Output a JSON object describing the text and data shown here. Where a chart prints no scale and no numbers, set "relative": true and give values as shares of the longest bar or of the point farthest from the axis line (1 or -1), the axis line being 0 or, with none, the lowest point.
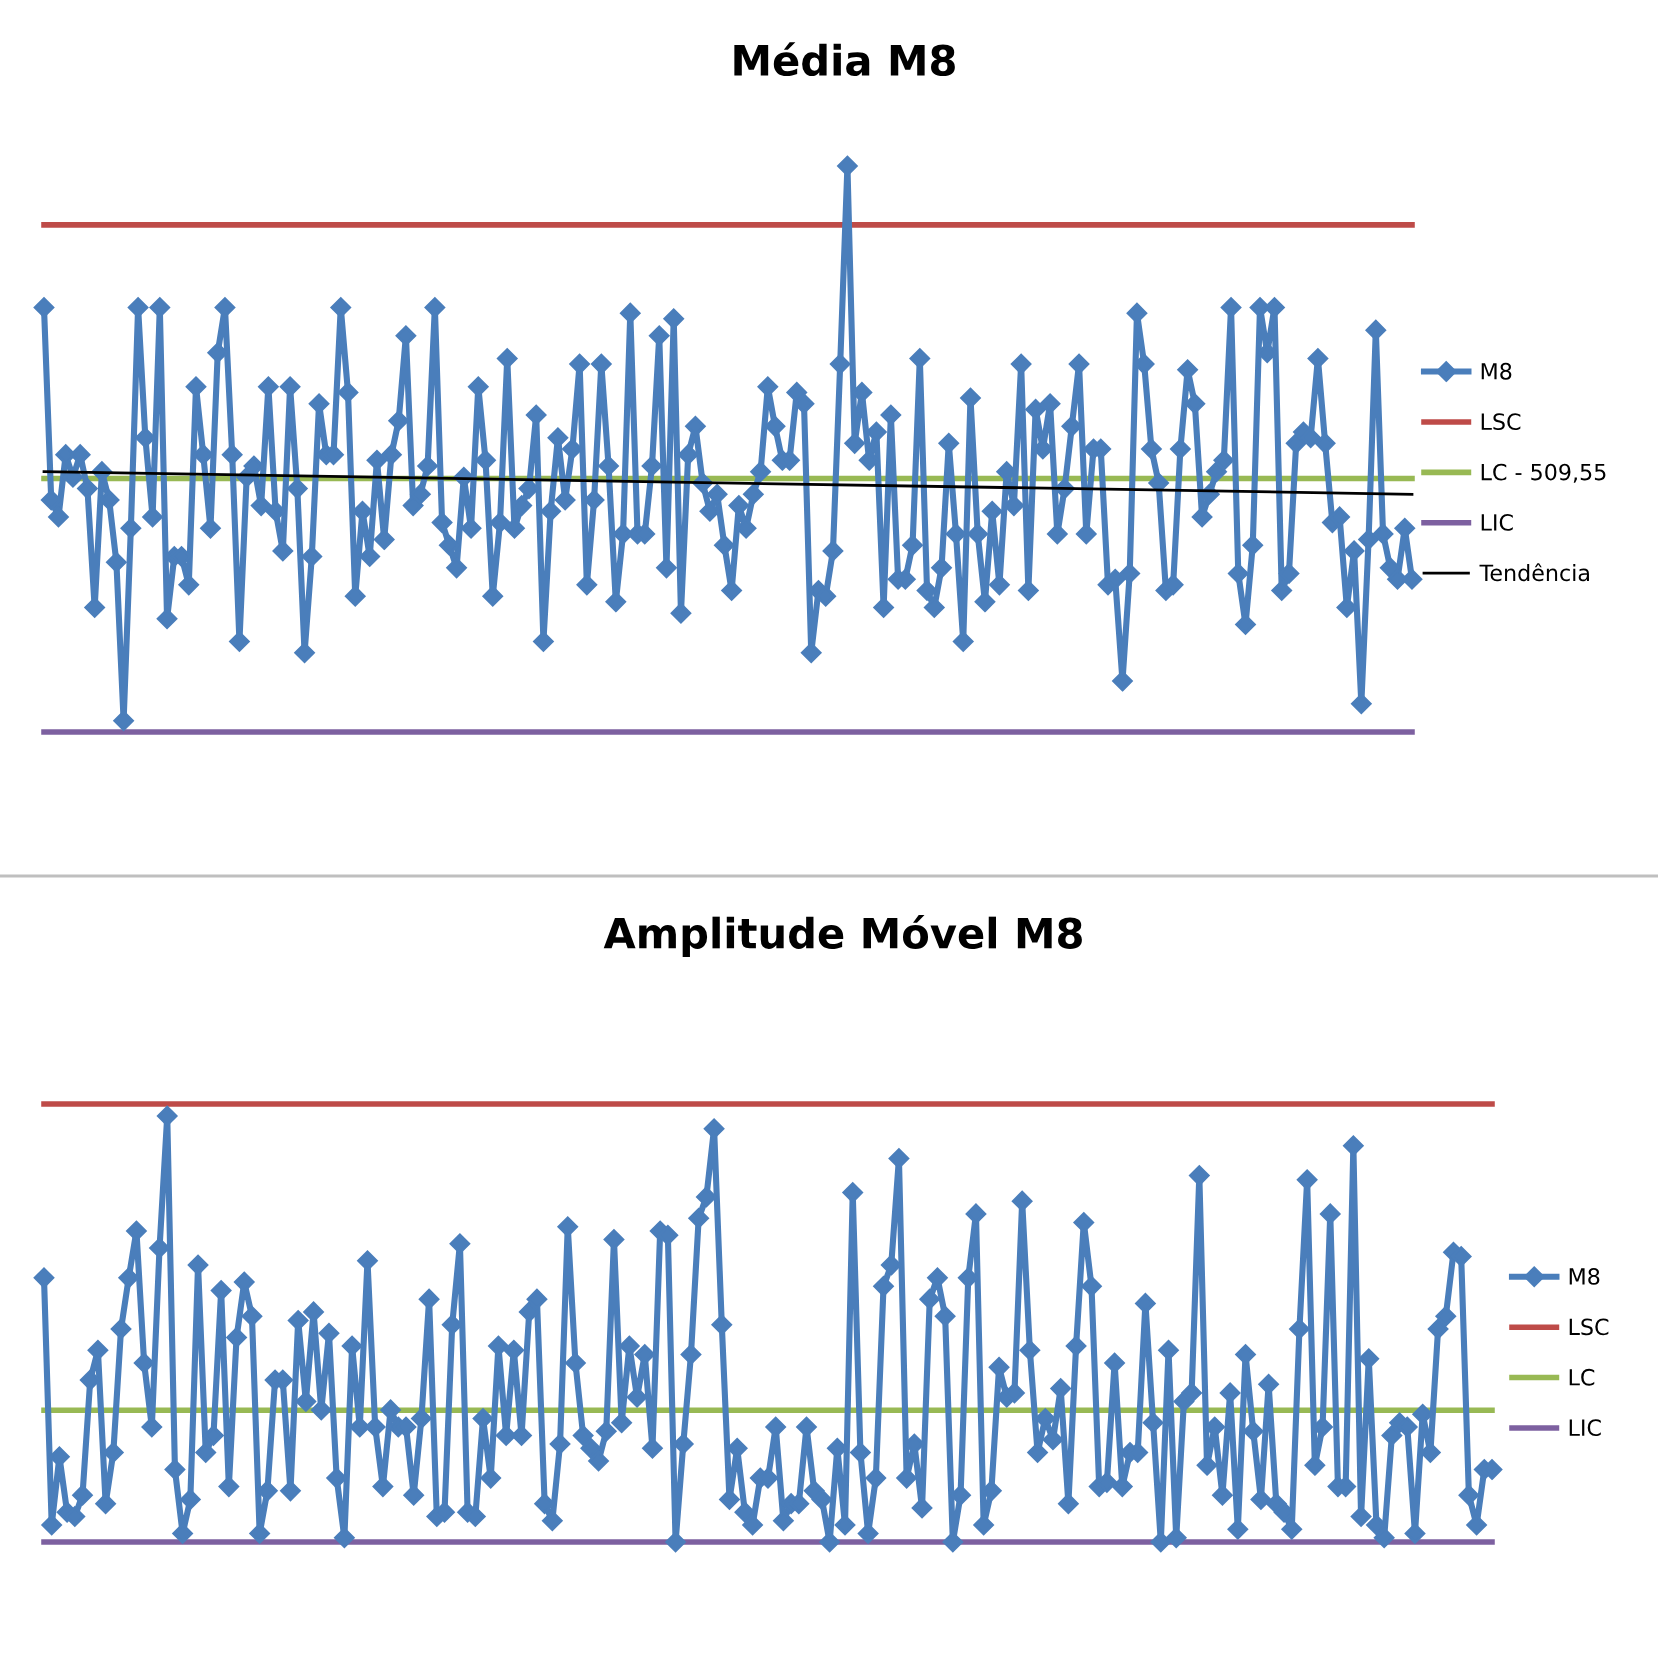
{
  "chart_data": [
    {
      "type": "line",
      "title": "Média M8",
      "relative": true,
      "legend": "right",
      "tick_labels": false,
      "categories": [
        null,
        null,
        null,
        null,
        null,
        null,
        null,
        null,
        null,
        null,
        null,
        null,
        null,
        null,
        null,
        null,
        null,
        null,
        null,
        null,
        null,
        null,
        null,
        null,
        null,
        null,
        null,
        null,
        null,
        null,
        null,
        null,
        null,
        null,
        null,
        null,
        null,
        null,
        null,
        null,
        null,
        null,
        null,
        null,
        null,
        null,
        null,
        null,
        null,
        null,
        null,
        null,
        null,
        null,
        null,
        null,
        null,
        null,
        null,
        null,
        null,
        null,
        null,
        null,
        null,
        null,
        null,
        null,
        null,
        null,
        null,
        null,
        null,
        null,
        null,
        null,
        null,
        null,
        null,
        null,
        null,
        null,
        null,
        null,
        null,
        null,
        null,
        null,
        null,
        null,
        null,
        null,
        null,
        null,
        null,
        null,
        null,
        null,
        null,
        null,
        null,
        null,
        null,
        null,
        null,
        null,
        null,
        null,
        null,
        null,
        null,
        null,
        null,
        null,
        null,
        null,
        null,
        null,
        null,
        null,
        null,
        null,
        null,
        null,
        null,
        null,
        null,
        null,
        null,
        null,
        null,
        null,
        null,
        null,
        null,
        null,
        null,
        null,
        null,
        null,
        null,
        null,
        null,
        null,
        null,
        null,
        null,
        null,
        null,
        null,
        null,
        null,
        null,
        null,
        null,
        null,
        null,
        null,
        null,
        null,
        null,
        null,
        null,
        null,
        null,
        null,
        null,
        null,
        null,
        null,
        null,
        null,
        null,
        null,
        null,
        null,
        null,
        null,
        null,
        null,
        null,
        null,
        null,
        null,
        null,
        null,
        null,
        null,
        null,
        null
      ],
      "series": [
        {
          "name": "M8",
          "color": "#4a7ebb",
          "marker": "diamond",
          "values": [
            0.75,
            0.41,
            0.38,
            0.49,
            0.45,
            0.49,
            0.43,
            0.22,
            0.46,
            0.41,
            0.3,
            0.02,
            0.36,
            0.75,
            0.52,
            0.38,
            0.75,
            0.2,
            0.31,
            0.31,
            0.26,
            0.61,
            0.49,
            0.36,
            0.67,
            0.75,
            0.49,
            0.16,
            0.45,
            0.47,
            0.4,
            0.61,
            0.39,
            0.32,
            0.61,
            0.43,
            0.14,
            0.31,
            0.58,
            0.49,
            0.49,
            0.75,
            0.6,
            0.24,
            0.39,
            0.31,
            0.48,
            0.34,
            0.49,
            0.55,
            0.7,
            0.4,
            0.42,
            0.47,
            0.75,
            0.37,
            0.33,
            0.29,
            0.45,
            0.36,
            0.61,
            0.48,
            0.24,
            0.37,
            0.66,
            0.36,
            0.4,
            0.43,
            0.56,
            0.16,
            0.39,
            0.52,
            0.41,
            0.5,
            0.65,
            0.26,
            0.41,
            0.65,
            0.47,
            0.23,
            0.35,
            0.74,
            0.35,
            0.35,
            0.47,
            0.7,
            0.29,
            0.73,
            0.21,
            0.49,
            0.54,
            0.44,
            0.39,
            0.42,
            0.33,
            0.25,
            0.4,
            0.36,
            0.42,
            0.46,
            0.61,
            0.54,
            0.48,
            0.48,
            0.6,
            0.58,
            0.14,
            0.25,
            0.24,
            0.32,
            0.65,
            1.0,
            0.51,
            0.6,
            0.48,
            0.53,
            0.22,
            0.56,
            0.27,
            0.27,
            0.33,
            0.66,
            0.25,
            0.22,
            0.29,
            0.51,
            0.35,
            0.16,
            0.59,
            0.35,
            0.23,
            0.39,
            0.26,
            0.46,
            0.4,
            0.65,
            0.25,
            0.57,
            0.5,
            0.58,
            0.35,
            0.43,
            0.54,
            0.65,
            0.35,
            0.5,
            0.5,
            0.26,
            0.27,
            0.09,
            0.28,
            0.74,
            0.65,
            0.5,
            0.44,
            0.25,
            0.26,
            0.5,
            0.64,
            0.58,
            0.38,
            0.42,
            0.46,
            0.48,
            0.75,
            0.28,
            0.19,
            0.33,
            0.75,
            0.67,
            0.75,
            0.25,
            0.28,
            0.51,
            0.53,
            0.52,
            0.66,
            0.51,
            0.37,
            0.38,
            0.22,
            0.32,
            0.05,
            0.34,
            0.71,
            0.35,
            0.29,
            0.27,
            0.36,
            0.27
          ]
        },
        {
          "name": "Tendência",
          "color": "#000000",
          "marker": "none",
          "type": "line",
          "values": [
            0.46,
            null,
            null,
            null,
            null,
            null,
            null,
            null,
            null,
            null,
            null,
            null,
            null,
            null,
            null,
            null,
            null,
            null,
            null,
            null,
            null,
            null,
            null,
            null,
            null,
            null,
            null,
            null,
            null,
            null,
            null,
            null,
            null,
            null,
            null,
            null,
            null,
            null,
            null,
            null,
            null,
            null,
            null,
            null,
            null,
            null,
            null,
            null,
            null,
            null,
            null,
            null,
            null,
            null,
            null,
            null,
            null,
            null,
            null,
            null,
            null,
            null,
            null,
            null,
            null,
            null,
            null,
            null,
            null,
            null,
            null,
            null,
            null,
            null,
            null,
            null,
            null,
            null,
            null,
            null,
            null,
            null,
            null,
            null,
            null,
            null,
            null,
            null,
            null,
            null,
            null,
            null,
            null,
            null,
            null,
            null,
            null,
            null,
            null,
            null,
            null,
            null,
            null,
            null,
            null,
            null,
            null,
            null,
            null,
            null,
            null,
            null,
            null,
            null,
            null,
            null,
            null,
            null,
            null,
            null,
            null,
            null,
            null,
            null,
            null,
            null,
            null,
            null,
            null,
            null,
            null,
            null,
            null,
            null,
            null,
            null,
            null,
            null,
            null,
            null,
            null,
            null,
            null,
            null,
            null,
            null,
            null,
            null,
            null,
            null,
            null,
            null,
            null,
            null,
            null,
            null,
            null,
            null,
            null,
            null,
            null,
            null,
            null,
            null,
            null,
            null,
            null,
            null,
            null,
            null,
            null,
            null,
            null,
            null,
            null,
            null,
            null,
            null,
            null,
            null,
            null,
            null,
            null,
            null,
            null,
            null,
            null,
            null,
            null,
            0.42
          ]
        }
      ],
      "ref_lines": [
        {
          "axis": "y",
          "value": 0.896,
          "label": "LSC",
          "color": "#be4b48"
        },
        {
          "axis": "y",
          "value": 0.448,
          "label": "LC - 509,55",
          "color": "#98b954"
        },
        {
          "axis": "y",
          "value": 0,
          "label": "LIC",
          "color": "#7d60a0"
        }
      ]
    },
    {
      "type": "line",
      "title": "Amplitude Móvel M8",
      "relative": true,
      "legend": "right",
      "tick_labels": false,
      "categories": [
        null,
        null,
        null,
        null,
        null,
        null,
        null,
        null,
        null,
        null,
        null,
        null,
        null,
        null,
        null,
        null,
        null,
        null,
        null,
        null,
        null,
        null,
        null,
        null,
        null,
        null,
        null,
        null,
        null,
        null,
        null,
        null,
        null,
        null,
        null,
        null,
        null,
        null,
        null,
        null,
        null,
        null,
        null,
        null,
        null,
        null,
        null,
        null,
        null,
        null,
        null,
        null,
        null,
        null,
        null,
        null,
        null,
        null,
        null,
        null,
        null,
        null,
        null,
        null,
        null,
        null,
        null,
        null,
        null,
        null,
        null,
        null,
        null,
        null,
        null,
        null,
        null,
        null,
        null,
        null,
        null,
        null,
        null,
        null,
        null,
        null,
        null,
        null,
        null,
        null,
        null,
        null,
        null,
        null,
        null,
        null,
        null,
        null,
        null,
        null,
        null,
        null,
        null,
        null,
        null,
        null,
        null,
        null,
        null,
        null,
        null,
        null,
        null,
        null,
        null,
        null,
        null,
        null,
        null,
        null,
        null,
        null,
        null,
        null,
        null,
        null,
        null,
        null,
        null,
        null,
        null,
        null,
        null,
        null,
        null,
        null,
        null,
        null,
        null,
        null,
        null,
        null,
        null,
        null,
        null,
        null,
        null,
        null,
        null,
        null,
        null,
        null,
        null,
        null,
        null,
        null,
        null,
        null,
        null,
        null,
        null,
        null,
        null,
        null,
        null,
        null,
        null,
        null,
        null,
        null,
        null,
        null,
        null,
        null,
        null,
        null,
        null,
        null,
        null,
        null,
        null,
        null,
        null,
        null,
        null,
        null,
        null,
        null,
        null
      ],
      "series": [
        {
          "name": "M8",
          "color": "#4a7ebb",
          "marker": "diamond",
          "values": [
            0.62,
            0.04,
            0.2,
            0.07,
            0.06,
            0.11,
            0.38,
            0.45,
            0.09,
            0.21,
            0.5,
            0.62,
            0.73,
            0.42,
            0.27,
            0.69,
            1.0,
            0.17,
            0.02,
            0.1,
            0.65,
            0.21,
            0.25,
            0.59,
            0.13,
            0.48,
            0.61,
            0.53,
            0.02,
            0.12,
            0.38,
            0.38,
            0.12,
            0.52,
            0.33,
            0.54,
            0.31,
            0.49,
            0.15,
            0.01,
            0.46,
            0.27,
            0.66,
            0.27,
            0.13,
            0.31,
            0.27,
            0.27,
            0.11,
            0.29,
            0.57,
            0.06,
            0.07,
            0.51,
            0.7,
            0.07,
            0.06,
            0.29,
            0.15,
            0.46,
            0.25,
            0.45,
            0.25,
            0.54,
            0.57,
            0.09,
            0.05,
            0.23,
            0.74,
            0.42,
            0.25,
            0.22,
            0.19,
            0.26,
            0.71,
            0.28,
            0.46,
            0.34,
            0.44,
            0.22,
            0.73,
            0.72,
            0.0,
            0.23,
            0.44,
            0.76,
            0.81,
            0.97,
            0.51,
            0.1,
            0.22,
            0.07,
            0.04,
            0.15,
            0.15,
            0.27,
            0.05,
            0.09,
            0.09,
            0.27,
            0.12,
            0.1,
            0.0,
            0.22,
            0.04,
            0.82,
            0.21,
            0.02,
            0.15,
            0.6,
            0.65,
            0.9,
            0.15,
            0.23,
            0.08,
            0.57,
            0.62,
            0.53,
            0.0,
            0.11,
            0.62,
            0.77,
            0.04,
            0.12,
            0.41,
            0.34,
            0.35,
            0.8,
            0.45,
            0.21,
            0.29,
            0.24,
            0.36,
            0.09,
            0.46,
            0.75,
            0.6,
            0.13,
            0.14,
            0.42,
            0.13,
            0.21,
            0.21,
            0.56,
            0.28,
            0.0,
            0.45,
            0.01,
            0.33,
            0.35,
            0.86,
            0.18,
            0.27,
            0.11,
            0.35,
            0.03,
            0.44,
            0.26,
            0.1,
            0.37,
            0.09,
            0.07,
            0.03,
            0.5,
            0.85,
            0.18,
            0.27,
            0.77,
            0.13,
            0.13,
            0.93,
            0.06,
            0.43,
            0.04,
            0.01,
            0.25,
            0.28,
            0.27,
            0.02,
            0.3,
            0.21,
            0.5,
            0.53,
            0.68,
            0.67,
            0.11,
            0.04,
            0.17,
            0.17
          ]
        }
      ],
      "ref_lines": [
        {
          "axis": "y",
          "value": 1.028,
          "label": "LSC",
          "color": "#be4b48"
        },
        {
          "axis": "y",
          "value": 0.309,
          "label": "LC",
          "color": "#98b954"
        },
        {
          "axis": "y",
          "value": 0,
          "label": "LIC",
          "color": "#7d60a0"
        }
      ]
    }
  ]
}
